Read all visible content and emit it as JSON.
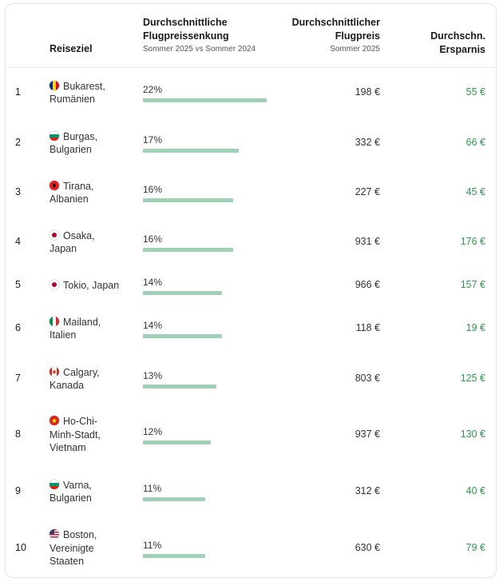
{
  "header": {
    "destination": "Reiseziel",
    "decline_line1": "Durchschnittliche",
    "decline_line2": "Flugpreissenkung",
    "decline_sub": "Sommer 2025 vs Sommer 2024",
    "avg_price_line1": "Durchschnittlicher",
    "avg_price_line2": "Flugpreis",
    "avg_price_sub": "Sommer 2025",
    "savings_line1": "Durchschn.",
    "savings_line2": "Ersparnis"
  },
  "colors": {
    "bar": "#9fd1b6",
    "savings": "#2f9a4d"
  },
  "rows": [
    {
      "rank": "1",
      "flag": "romania-flag-icon",
      "dest_lines": [
        "Bukarest,",
        "Rumänien"
      ],
      "pct_label": "22%",
      "pct": 22,
      "price": "198 €",
      "saving": "55 €"
    },
    {
      "rank": "2",
      "flag": "bulgaria-flag-icon",
      "dest_lines": [
        "Burgas,",
        "Bulgarien"
      ],
      "pct_label": "17%",
      "pct": 17,
      "price": "332 €",
      "saving": "66 €"
    },
    {
      "rank": "3",
      "flag": "albania-flag-icon",
      "dest_lines": [
        "Tirana,",
        "Albanien"
      ],
      "pct_label": "16%",
      "pct": 16,
      "price": "227 €",
      "saving": "45 €"
    },
    {
      "rank": "4",
      "flag": "japan-flag-icon",
      "dest_lines": [
        "Osaka,",
        "Japan"
      ],
      "pct_label": "16%",
      "pct": 16,
      "price": "931 €",
      "saving": "176 €"
    },
    {
      "rank": "5",
      "flag": "japan-flag-icon",
      "dest_lines": [
        "Tokio, Japan"
      ],
      "pct_label": "14%",
      "pct": 14,
      "price": "966 €",
      "saving": "157 €"
    },
    {
      "rank": "6",
      "flag": "italy-flag-icon",
      "dest_lines": [
        "Mailand,",
        "Italien"
      ],
      "pct_label": "14%",
      "pct": 14,
      "price": "118 €",
      "saving": "19 €"
    },
    {
      "rank": "7",
      "flag": "canada-flag-icon",
      "dest_lines": [
        "Calgary,",
        "Kanada"
      ],
      "pct_label": "13%",
      "pct": 13,
      "price": "803 €",
      "saving": "125 €"
    },
    {
      "rank": "8",
      "flag": "vietnam-flag-icon",
      "dest_lines": [
        "Ho-Chi-",
        "Minh-Stadt,",
        "Vietnam"
      ],
      "pct_label": "12%",
      "pct": 12,
      "price": "937 €",
      "saving": "130 €"
    },
    {
      "rank": "9",
      "flag": "bulgaria-flag-icon",
      "dest_lines": [
        "Varna,",
        "Bulgarien"
      ],
      "pct_label": "11%",
      "pct": 11,
      "price": "312 €",
      "saving": "40 €"
    },
    {
      "rank": "10",
      "flag": "usa-flag-icon",
      "dest_lines": [
        "Boston,",
        "Vereinigte",
        "Staaten"
      ],
      "pct_label": "11%",
      "pct": 11,
      "price": "630 €",
      "saving": "79 €"
    }
  ]
}
